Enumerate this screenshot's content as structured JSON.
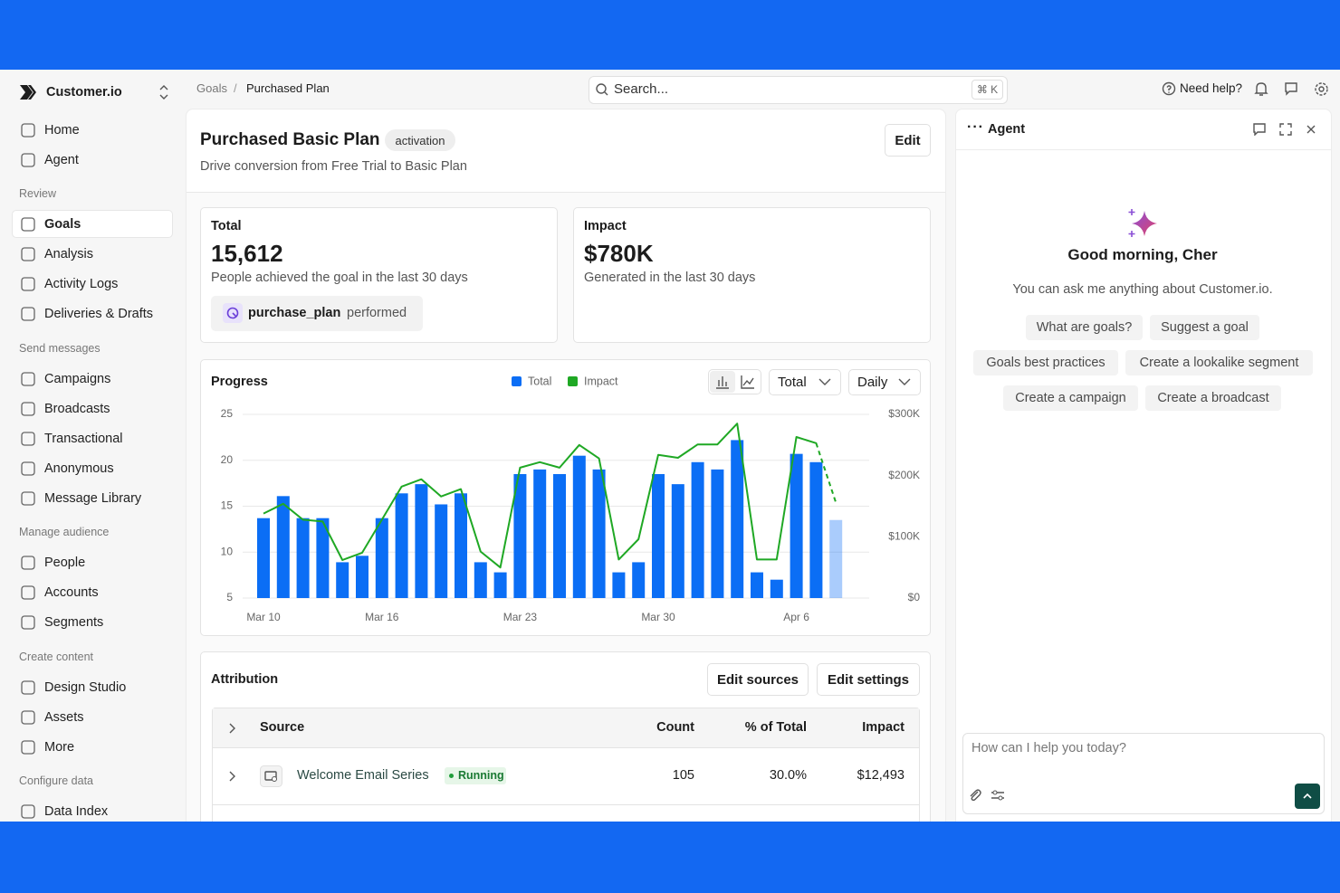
{
  "app": {
    "brand": "Customer.io"
  },
  "breadcrumb": [
    "Goals",
    "Purchased Plan"
  ],
  "search": {
    "placeholder": "Search...",
    "shortcut": "⌘ K"
  },
  "topbar": {
    "help": "Need help?"
  },
  "nav": {
    "top": [
      "Home",
      "Agent"
    ],
    "sections": [
      {
        "title": "Review",
        "items": [
          "Goals",
          "Analysis",
          "Activity Logs",
          "Deliveries & Drafts"
        ]
      },
      {
        "title": "Send messages",
        "items": [
          "Campaigns",
          "Broadcasts",
          "Transactional",
          "Anonymous",
          "Message Library"
        ]
      },
      {
        "title": "Manage audience",
        "items": [
          "People",
          "Accounts",
          "Segments"
        ]
      },
      {
        "title": "Create content",
        "items": [
          "Design Studio",
          "Assets",
          "More"
        ]
      },
      {
        "title": "Configure data",
        "items": [
          "Data Index"
        ]
      }
    ]
  },
  "goal": {
    "title": "Purchased Basic Plan",
    "tag": "activation",
    "description": "Drive conversion from Free Trial to Basic Plan",
    "edit": "Edit"
  },
  "stats": [
    {
      "label": "Total",
      "value": "15,612",
      "caption": "People achieved the goal in the last 30 days",
      "event": "purchase_plan",
      "event_suffix": "performed"
    },
    {
      "label": "Impact",
      "value": "$780K",
      "caption": "Generated in the last 30 days"
    }
  ],
  "progress_controls": [
    "Total",
    "Daily"
  ],
  "chart_data": {
    "type": "combo",
    "title": "Progress",
    "categories": [
      "Mar 10",
      null,
      null,
      null,
      null,
      null,
      "Mar 16",
      null,
      null,
      null,
      null,
      null,
      null,
      "Mar 23",
      null,
      null,
      null,
      null,
      null,
      null,
      "Mar 30",
      null,
      null,
      null,
      null,
      null,
      null,
      "Apr 6",
      null,
      null
    ],
    "series": [
      {
        "name": "Total",
        "type": "bar",
        "color": "#0b6ef5",
        "values": [
          13.7,
          16.1,
          13.7,
          13.7,
          8.9,
          9.6,
          13.7,
          16.4,
          17.4,
          15.2,
          16.4,
          8.9,
          7.8,
          18.5,
          19,
          18.5,
          20.5,
          19,
          7.8,
          8.9,
          18.5,
          17.4,
          19.8,
          19,
          22.2,
          7.8,
          7,
          20.7,
          19.8,
          13.5
        ]
      },
      {
        "name": "Impact",
        "type": "line",
        "axis": "y2",
        "color": "#1fa824",
        "values": [
          138000,
          154000,
          128000,
          125000,
          62000,
          74000,
          128000,
          182000,
          194000,
          166000,
          178000,
          76000,
          50000,
          213000,
          222000,
          213000,
          250000,
          228000,
          63000,
          96000,
          234000,
          229000,
          251000,
          251000,
          285000,
          63000,
          63000,
          263000,
          253000,
          156000
        ]
      }
    ],
    "ylim": [
      5,
      25
    ],
    "yticks": [
      5,
      10,
      15,
      20,
      25
    ],
    "y2lim": [
      0,
      300000
    ],
    "y2ticks": [
      {
        "value": 0,
        "label": "$0"
      },
      {
        "value": 100000,
        "label": "$100K"
      },
      {
        "value": 200000,
        "label": "$200K"
      },
      {
        "value": 300000,
        "label": "$300K"
      }
    ],
    "grid": true
  },
  "attribution": {
    "title": "Attribution",
    "buttons": [
      "Edit sources",
      "Edit settings"
    ],
    "columns": [
      "Source",
      "Count",
      "% of Total",
      "Impact"
    ],
    "rows": [
      {
        "name": "Welcome Email Series",
        "status": "Running",
        "count": "105",
        "percent": "30.0%",
        "impact": "$12,493"
      }
    ]
  },
  "agent": {
    "title": "Agent",
    "greeting": "Good morning, Cher",
    "subtitle": "You can ask me anything about Customer.io.",
    "suggestions": [
      "What are goals?",
      "Suggest a goal",
      "Goals best practices",
      "Create a lookalike segment",
      "Create a campaign",
      "Create a broadcast"
    ],
    "placeholder": "How can I help you today?"
  }
}
